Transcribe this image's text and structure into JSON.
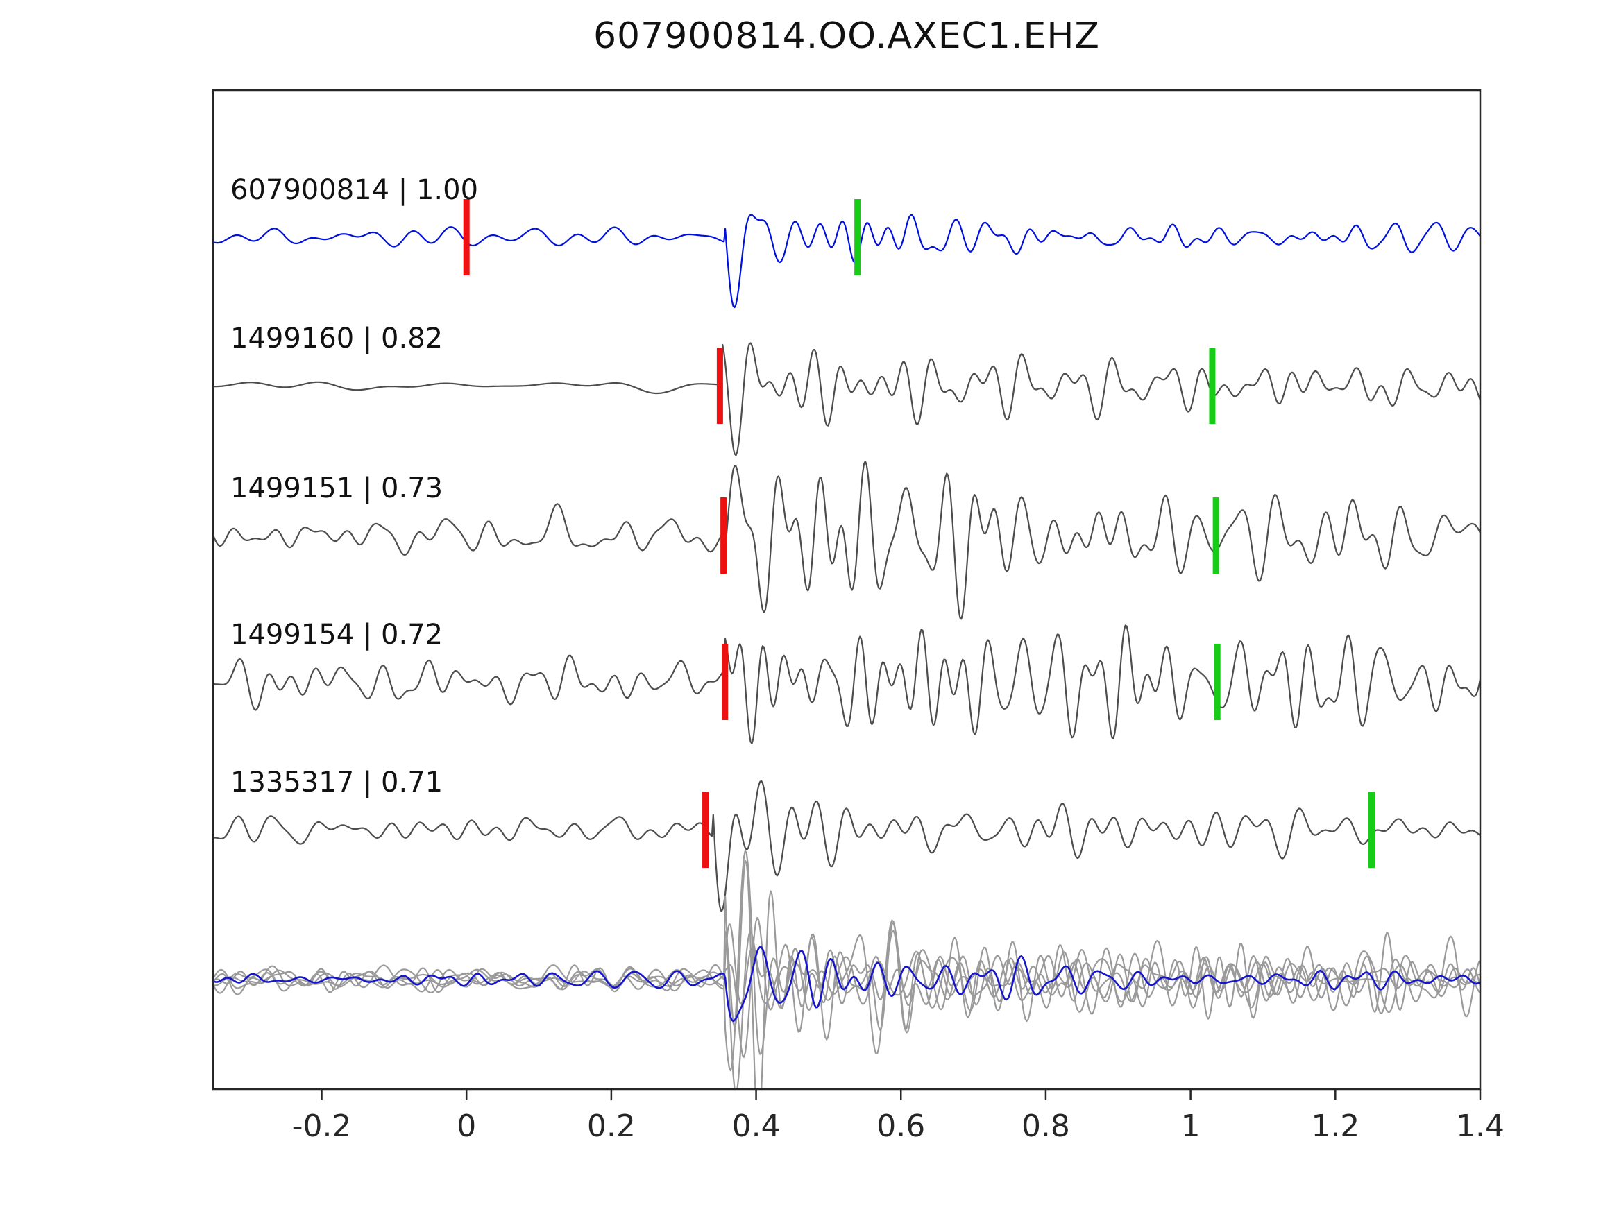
{
  "title": "607900814.OO.AXEC1.EHZ",
  "chart_data": {
    "type": "line",
    "title": "607900814.OO.AXEC1.EHZ",
    "xlabel": "",
    "ylabel": "",
    "xlim": [
      -0.35,
      1.4
    ],
    "grid": false,
    "legend": "none",
    "x_ticks": [
      {
        "value": -0.2,
        "label": "-0.2"
      },
      {
        "value": 0,
        "label": "0"
      },
      {
        "value": 0.2,
        "label": "0.2"
      },
      {
        "value": 0.4,
        "label": "0.4"
      },
      {
        "value": 0.6,
        "label": "0.6"
      },
      {
        "value": 0.8,
        "label": "0.8"
      },
      {
        "value": 1,
        "label": "1"
      },
      {
        "value": 1.2,
        "label": "1.2"
      },
      {
        "value": 1.4,
        "label": "1.4"
      }
    ],
    "marker_colors": {
      "pick_red": "#ee1111",
      "pick_green": "#17cc17"
    },
    "axis_color": "#262626",
    "traces": [
      {
        "label": "607900814 | 1.00",
        "event_id": "607900814",
        "correlation": 1.0,
        "color": "#0011dd",
        "red_pick": 0.0,
        "green_pick": 0.54,
        "synth": {
          "seed": 11,
          "noise": 15,
          "nf": 1.0,
          "onset": 0.357,
          "spike": 130,
          "burst": 26,
          "bdecay": 0.1,
          "coda": 15,
          "cdecay": 1.5
        }
      },
      {
        "label": "1499160 | 0.82",
        "event_id": "1499160",
        "correlation": 0.82,
        "color": "#4d4d4d",
        "red_pick": 0.35,
        "green_pick": 1.03,
        "synth": {
          "seed": 22,
          "noise": 6,
          "nf": 0.45,
          "onset": 0.352,
          "spike": 115,
          "burst": 60,
          "bdecay": 0.28,
          "coda": 44,
          "cdecay": 3.0
        }
      },
      {
        "label": "1499151 | 0.73",
        "event_id": "1499151",
        "correlation": 0.73,
        "color": "#4d4d4d",
        "red_pick": 0.355,
        "green_pick": 1.035,
        "synth": {
          "seed": 33,
          "noise": 24,
          "nf": 1.0,
          "onset": 0.356,
          "spike": 95,
          "burst": 55,
          "bdecay": 0.35,
          "coda": 48,
          "cdecay": 3.0
        }
      },
      {
        "label": "1499154 | 0.72",
        "event_id": "1499154",
        "correlation": 0.72,
        "color": "#4d4d4d",
        "red_pick": 0.357,
        "green_pick": 1.037,
        "synth": {
          "seed": 44,
          "noise": 28,
          "nf": 1.0,
          "onset": 0.356,
          "spike": 92,
          "burst": 75,
          "bdecay": 0.3,
          "coda": 42,
          "cdecay": 2.0
        }
      },
      {
        "label": "1335317 | 0.71",
        "event_id": "1335317",
        "correlation": 0.71,
        "color": "#4d4d4d",
        "red_pick": 0.33,
        "green_pick": 1.25,
        "synth": {
          "seed": 55,
          "noise": 20,
          "nf": 1.0,
          "onset": 0.34,
          "spike": 100,
          "burst": 55,
          "bdecay": 0.18,
          "coda": 22,
          "cdecay": 1.0
        }
      }
    ],
    "overlay": {
      "description": "aligned stack of detected traces with template overlaid",
      "blue_color": "#1515cc",
      "gray_color": "#9a9a9a",
      "blue_synth": {
        "seed": 111,
        "noise": 10,
        "nf": 1.0,
        "onset": 0.357,
        "spike": 80,
        "burst": 45,
        "bdecay": 0.18,
        "coda": 16,
        "cdecay": 1.2
      },
      "gray_synths": [
        {
          "seed": 66,
          "noise": 17,
          "nf": 1.0,
          "onset": 0.357,
          "spike": 90,
          "burst": 55,
          "bdecay": 0.3,
          "coda": 38,
          "cdecay": 2.0
        },
        {
          "seed": 77,
          "noise": 22,
          "nf": 1.0,
          "onset": 0.357,
          "spike": 75,
          "burst": 62,
          "bdecay": 0.28,
          "coda": 42,
          "cdecay": 2.2
        },
        {
          "seed": 88,
          "noise": 14,
          "nf": 1.0,
          "onset": 0.357,
          "spike": 95,
          "burst": 48,
          "bdecay": 0.32,
          "coda": 34,
          "cdecay": 1.8
        },
        {
          "seed": 99,
          "noise": 19,
          "nf": 1.0,
          "onset": 0.357,
          "spike": 82,
          "burst": 58,
          "bdecay": 0.25,
          "coda": 40,
          "cdecay": 2.5
        },
        {
          "seed": 123,
          "noise": 16,
          "nf": 1.0,
          "onset": 0.357,
          "spike": 70,
          "burst": 52,
          "bdecay": 0.35,
          "coda": 30,
          "cdecay": 1.5
        }
      ]
    }
  }
}
